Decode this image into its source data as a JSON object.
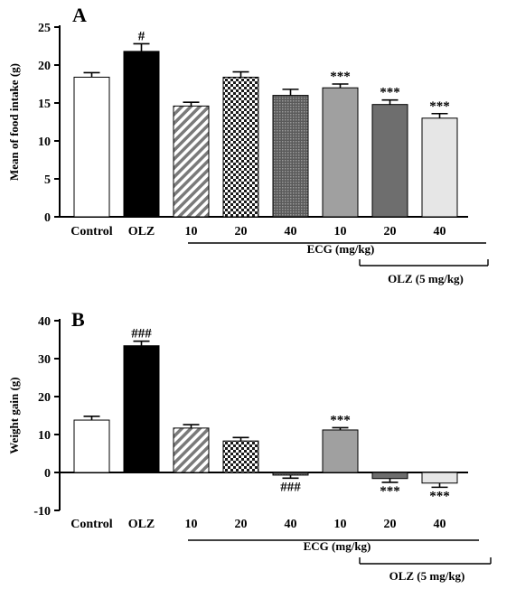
{
  "chart_data": [
    {
      "panel": "A",
      "type": "bar",
      "ylabel": "Mean of food intake (g)",
      "ylim": [
        0,
        25
      ],
      "yticks": [
        "0",
        "5",
        "10",
        "15",
        "20",
        "25"
      ],
      "categories": [
        "Control",
        "OLZ",
        "10",
        "20",
        "40",
        "10",
        "20",
        "40"
      ],
      "values": [
        18.4,
        21.8,
        14.6,
        18.4,
        16.0,
        17.0,
        14.8,
        13.0
      ],
      "errors": [
        0.6,
        1.0,
        0.5,
        0.7,
        0.8,
        0.5,
        0.6,
        0.6
      ],
      "annotations": [
        "",
        "#",
        "",
        "",
        "",
        "***",
        "***",
        "***"
      ],
      "groups": [
        {
          "label": "ECG (mg/kg)",
          "from": 2,
          "to": 7
        },
        {
          "label": "OLZ (5 mg/kg)",
          "from": 5,
          "to": 7
        }
      ]
    },
    {
      "panel": "B",
      "type": "bar",
      "ylabel": "Weight gain (g)",
      "ylim": [
        -10,
        40
      ],
      "yticks": [
        "-10",
        "0",
        "10",
        "20",
        "30",
        "40"
      ],
      "categories": [
        "Control",
        "OLZ",
        "10",
        "20",
        "40",
        "10",
        "20",
        "40"
      ],
      "values": [
        13.8,
        33.4,
        11.7,
        8.3,
        -0.7,
        11.2,
        -1.6,
        -2.8
      ],
      "errors": [
        1.0,
        1.2,
        0.9,
        0.9,
        0.8,
        0.6,
        1.0,
        1.1
      ],
      "annotations": [
        "",
        "###",
        "",
        "",
        "###",
        "***",
        "***",
        "***"
      ],
      "groups": [
        {
          "label": "ECG (mg/kg)",
          "from": 2,
          "to": 7
        },
        {
          "label": "OLZ (5 mg/kg)",
          "from": 5,
          "to": 7
        }
      ]
    }
  ],
  "bar_styles": [
    {
      "fill": "#ffffff",
      "pattern": "none"
    },
    {
      "fill": "#000000",
      "pattern": "none"
    },
    {
      "fill": "#ffffff",
      "pattern": "diagonal"
    },
    {
      "fill": "#ffffff",
      "pattern": "checker"
    },
    {
      "fill": "#ffffff",
      "pattern": "dots"
    },
    {
      "fill": "#a0a0a0",
      "pattern": "none"
    },
    {
      "fill": "#6e6e6e",
      "pattern": "none"
    },
    {
      "fill": "#e6e6e6",
      "pattern": "none"
    }
  ]
}
